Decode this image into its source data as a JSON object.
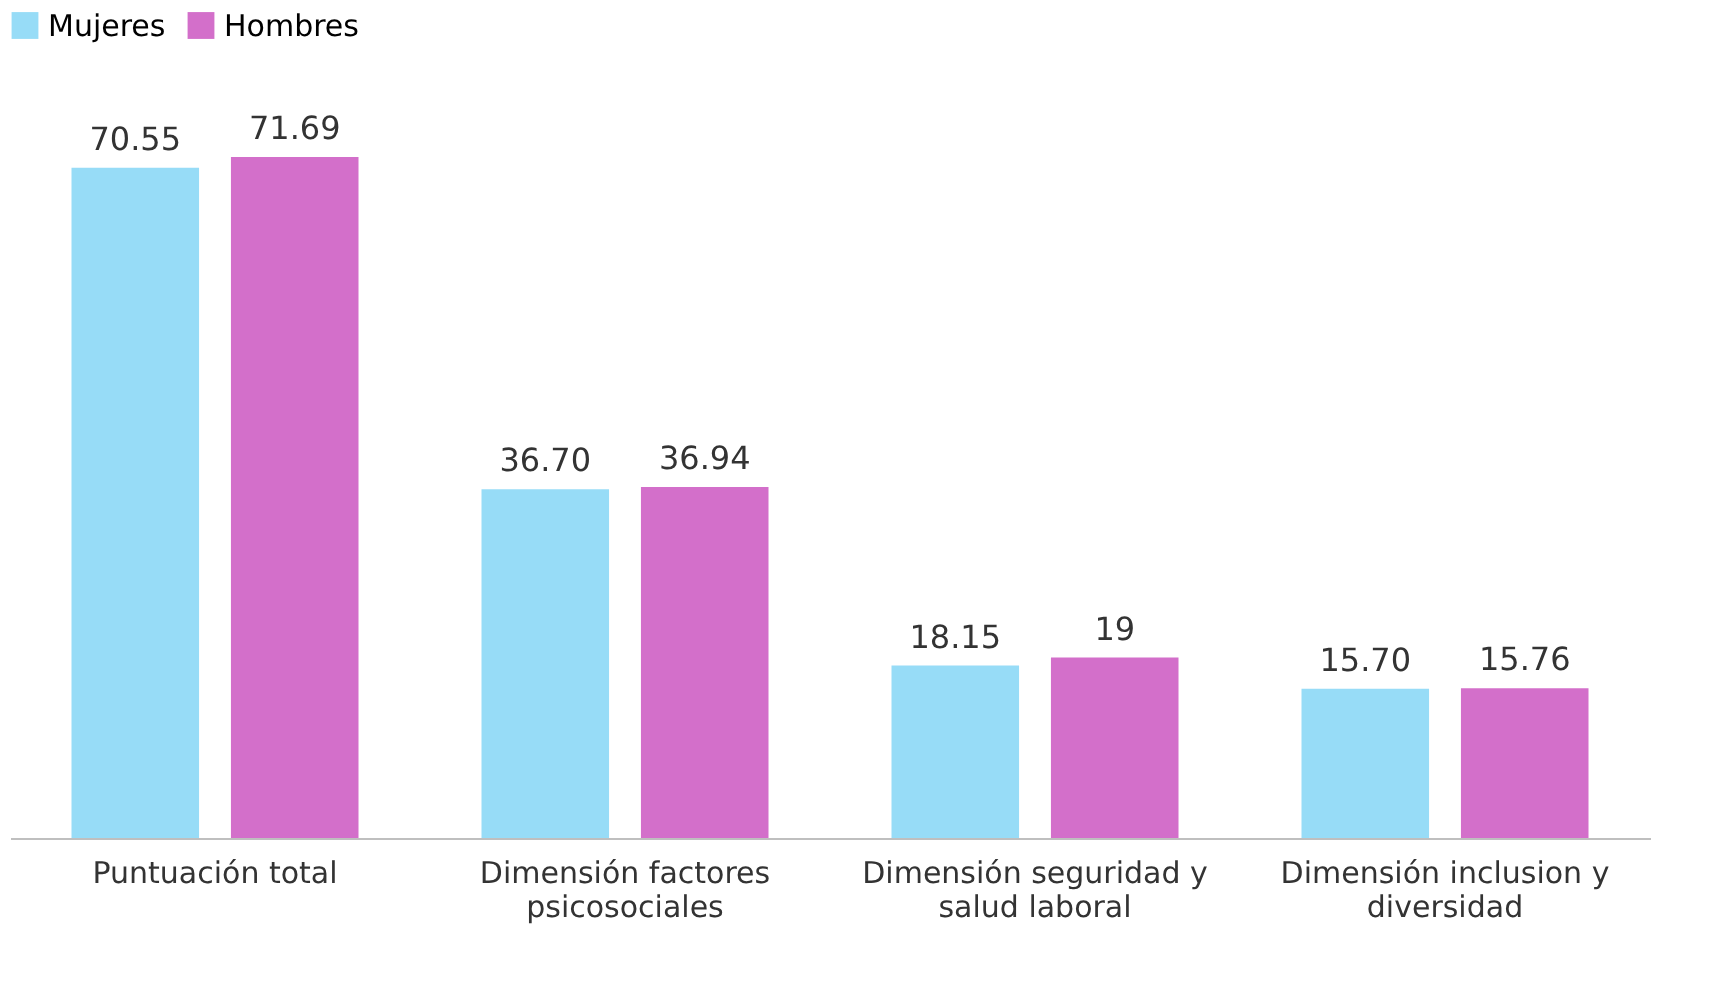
{
  "chart_data": {
    "type": "bar",
    "categories": [
      "Puntuación total",
      "Dimensión factores psicosociales",
      "Dimensión seguridad y salud laboral",
      "Dimensión inclusion y diversidad"
    ],
    "series": [
      {
        "name": "Mujeres",
        "color": "#97dcf7",
        "values": [
          70.55,
          36.7,
          18.15,
          15.7
        ],
        "value_labels": [
          "70.55",
          "36.70",
          "18.15",
          "15.70"
        ]
      },
      {
        "name": "Hombres",
        "color": "#d36fca",
        "values": [
          71.69,
          36.94,
          19,
          15.76
        ],
        "value_labels": [
          "71.69",
          "36.94",
          "19",
          "15.76"
        ]
      }
    ],
    "legend": "top",
    "grid": false
  }
}
